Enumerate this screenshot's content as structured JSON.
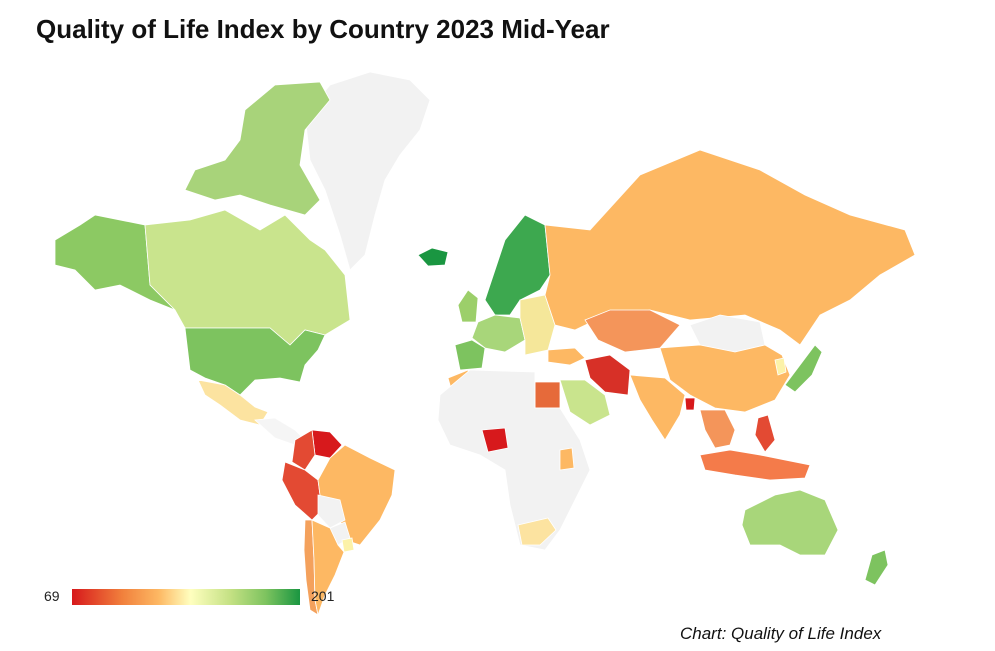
{
  "title": "Quality of Life Index by Country 2023 Mid-Year",
  "legend": {
    "min_label": "69",
    "max_label": "201"
  },
  "credit": "Chart: Quality of Life Index",
  "colors": {
    "no_data": "#f2f2f2",
    "low": "#d7191c",
    "mid": "#ffffbf",
    "high": "#1a9641"
  },
  "regions": [
    {
      "name": "canada",
      "color": "#c9e48d"
    },
    {
      "name": "alaska",
      "color": "#8cc963"
    },
    {
      "name": "canada-arctic-islands",
      "color": "#a8d37a"
    },
    {
      "name": "greenland",
      "color": "#f2f2f2"
    },
    {
      "name": "iceland",
      "color": "#1a9641"
    },
    {
      "name": "usa",
      "color": "#7dc35f"
    },
    {
      "name": "mexico",
      "color": "#fce3a0"
    },
    {
      "name": "central-america",
      "color": "#f5f5f5"
    },
    {
      "name": "colombia",
      "color": "#e34a33"
    },
    {
      "name": "venezuela",
      "color": "#d7191c"
    },
    {
      "name": "ecuador-peru",
      "color": "#e34a33"
    },
    {
      "name": "brazil",
      "color": "#fdb863"
    },
    {
      "name": "bolivia",
      "color": "#f2f2f2"
    },
    {
      "name": "paraguay",
      "color": "#f2f2f2"
    },
    {
      "name": "uruguay",
      "color": "#fcf2a8"
    },
    {
      "name": "argentina",
      "color": "#fdb863"
    },
    {
      "name": "chile",
      "color": "#f4a15c"
    },
    {
      "name": "nordics",
      "color": "#3da84f"
    },
    {
      "name": "uk-ireland",
      "color": "#9ccf6a"
    },
    {
      "name": "western-europe",
      "color": "#a8d67a"
    },
    {
      "name": "iberia",
      "color": "#7dc35f"
    },
    {
      "name": "eastern-europe",
      "color": "#f5e79a"
    },
    {
      "name": "russia",
      "color": "#fdb863"
    },
    {
      "name": "kazakhstan",
      "color": "#f4955a"
    },
    {
      "name": "china",
      "color": "#fdb863"
    },
    {
      "name": "mongolia",
      "color": "#f2f2f2"
    },
    {
      "name": "iran",
      "color": "#d73027"
    },
    {
      "name": "turkey",
      "color": "#fdb863"
    },
    {
      "name": "saudi-arabia",
      "color": "#c9e48d"
    },
    {
      "name": "egypt",
      "color": "#e66a3a"
    },
    {
      "name": "nigeria",
      "color": "#d7191c"
    },
    {
      "name": "africa",
      "color": "#f2f2f2"
    },
    {
      "name": "kenya",
      "color": "#fdb863"
    },
    {
      "name": "south-africa",
      "color": "#fce3a0"
    },
    {
      "name": "morocco",
      "color": "#fdb863"
    },
    {
      "name": "india",
      "color": "#fdb863"
    },
    {
      "name": "bangladesh",
      "color": "#d7191c"
    },
    {
      "name": "southeast-asia",
      "color": "#f4955a"
    },
    {
      "name": "philippines",
      "color": "#e34a33"
    },
    {
      "name": "indonesia",
      "color": "#f47b4a"
    },
    {
      "name": "japan",
      "color": "#7dc35f"
    },
    {
      "name": "korea",
      "color": "#fcf2a8"
    },
    {
      "name": "australia",
      "color": "#a8d67a"
    },
    {
      "name": "new-zealand",
      "color": "#7dc35f"
    }
  ]
}
